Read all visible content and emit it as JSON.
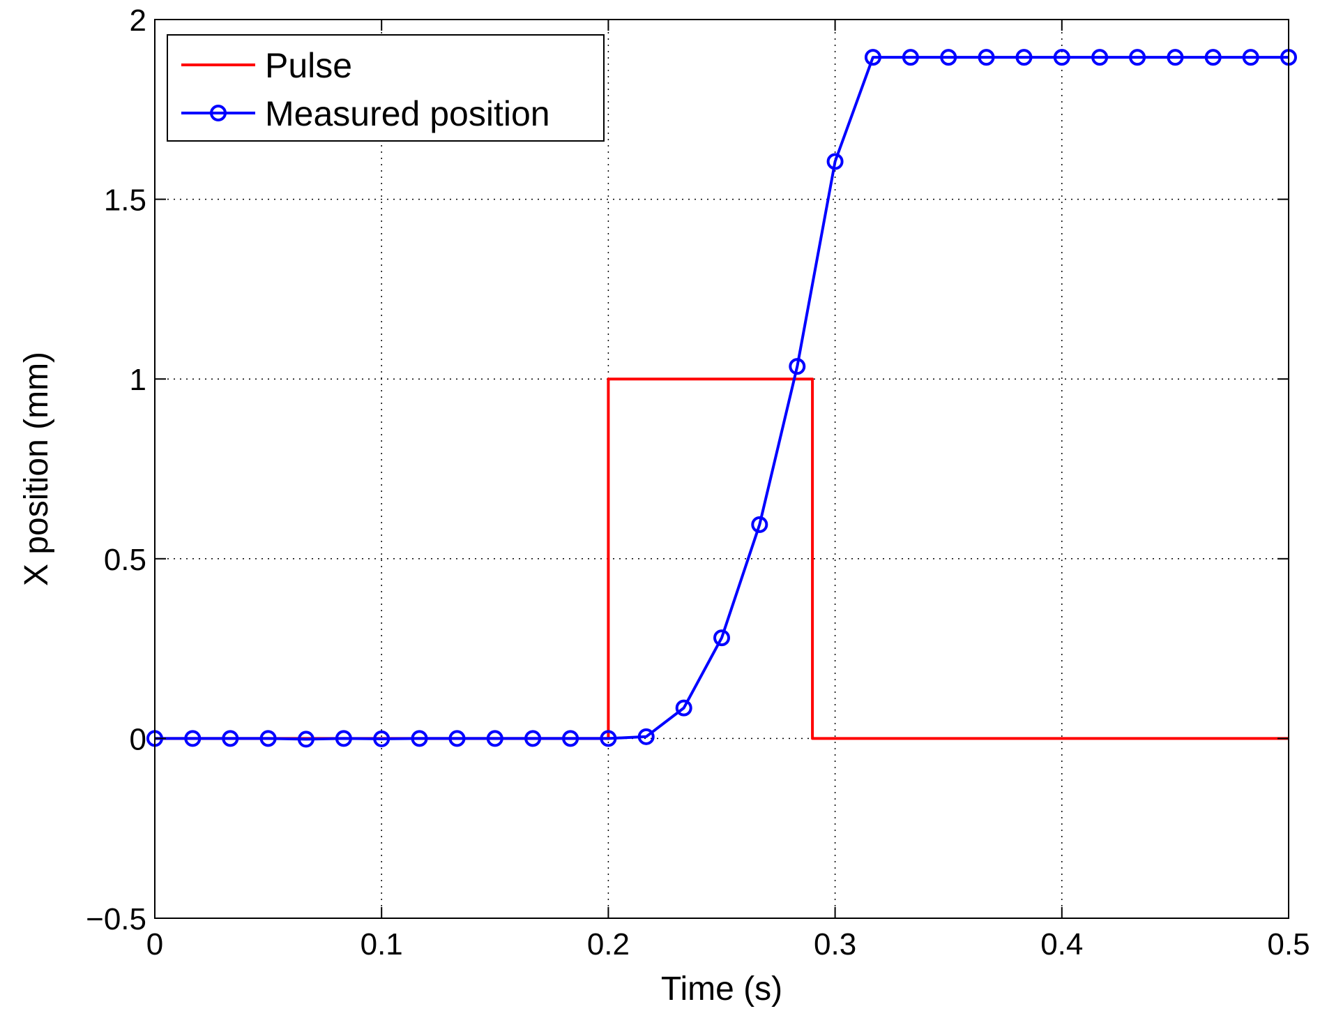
{
  "chart_data": {
    "type": "line",
    "title": "",
    "xlabel": "Time (s)",
    "ylabel": "X position (mm)",
    "xlim": [
      0,
      0.5
    ],
    "ylim": [
      -0.5,
      2
    ],
    "xticks": [
      0,
      0.1,
      0.2,
      0.3,
      0.4,
      0.5
    ],
    "xtick_labels": [
      "0",
      "0.1",
      "0.2",
      "0.3",
      "0.4",
      "0.5"
    ],
    "yticks": [
      -0.5,
      0,
      0.5,
      1,
      1.5,
      2
    ],
    "ytick_labels": [
      "−0.5",
      "0",
      "0.5",
      "1",
      "1.5",
      "2"
    ],
    "grid": true,
    "legend_position": "top-left",
    "series": [
      {
        "name": "Pulse",
        "color": "#ff0000",
        "marker": "none",
        "x": [
          0,
          0.2,
          0.2,
          0.29,
          0.29,
          0.5
        ],
        "y": [
          0,
          0,
          1,
          1,
          0,
          0
        ]
      },
      {
        "name": "Measured position",
        "color": "#0000ff",
        "marker": "circle",
        "x": [
          0,
          0.0167,
          0.0333,
          0.05,
          0.0667,
          0.0833,
          0.1,
          0.1167,
          0.1333,
          0.15,
          0.1667,
          0.1833,
          0.2,
          0.2167,
          0.2333,
          0.25,
          0.2667,
          0.2833,
          0.3,
          0.3167,
          0.3333,
          0.35,
          0.3667,
          0.3833,
          0.4,
          0.4167,
          0.4333,
          0.45,
          0.4667,
          0.4833,
          0.5
        ],
        "y": [
          0,
          0,
          0,
          0,
          -0.002,
          0,
          -0.001,
          0,
          0,
          0,
          0,
          0,
          0,
          0.005,
          0.085,
          0.28,
          0.595,
          1.035,
          1.605,
          1.895,
          1.895,
          1.895,
          1.895,
          1.895,
          1.895,
          1.895,
          1.895,
          1.895,
          1.895,
          1.895,
          1.895
        ]
      }
    ]
  }
}
